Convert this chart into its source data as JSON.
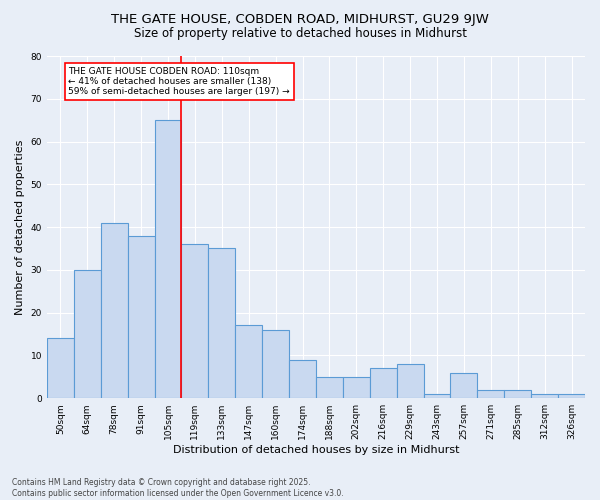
{
  "title1": "THE GATE HOUSE, COBDEN ROAD, MIDHURST, GU29 9JW",
  "title2": "Size of property relative to detached houses in Midhurst",
  "xlabel": "Distribution of detached houses by size in Midhurst",
  "ylabel": "Number of detached properties",
  "categories": [
    "50sqm",
    "64sqm",
    "78sqm",
    "91sqm",
    "105sqm",
    "119sqm",
    "133sqm",
    "147sqm",
    "160sqm",
    "174sqm",
    "188sqm",
    "202sqm",
    "216sqm",
    "229sqm",
    "243sqm",
    "257sqm",
    "271sqm",
    "285sqm",
    "312sqm",
    "326sqm"
  ],
  "values": [
    14,
    30,
    41,
    38,
    65,
    36,
    35,
    17,
    16,
    9,
    5,
    5,
    7,
    8,
    1,
    6,
    2,
    2,
    1,
    1
  ],
  "bar_color": "#c9d9f0",
  "bar_edge_color": "#5b9bd5",
  "red_line_index": 4.5,
  "annotation_text": "THE GATE HOUSE COBDEN ROAD: 110sqm\n← 41% of detached houses are smaller (138)\n59% of semi-detached houses are larger (197) →",
  "annotation_box_color": "white",
  "annotation_box_edge": "red",
  "footer_text": "Contains HM Land Registry data © Crown copyright and database right 2025.\nContains public sector information licensed under the Open Government Licence v3.0.",
  "background_color": "#e8eef7",
  "plot_bg_color": "#e8eef7",
  "ylim": [
    0,
    80
  ],
  "yticks": [
    0,
    10,
    20,
    30,
    40,
    50,
    60,
    70,
    80
  ],
  "title_fontsize": 9.5,
  "subtitle_fontsize": 8.5,
  "tick_fontsize": 6.5,
  "label_fontsize": 8,
  "annotation_fontsize": 6.5,
  "footer_fontsize": 5.5
}
